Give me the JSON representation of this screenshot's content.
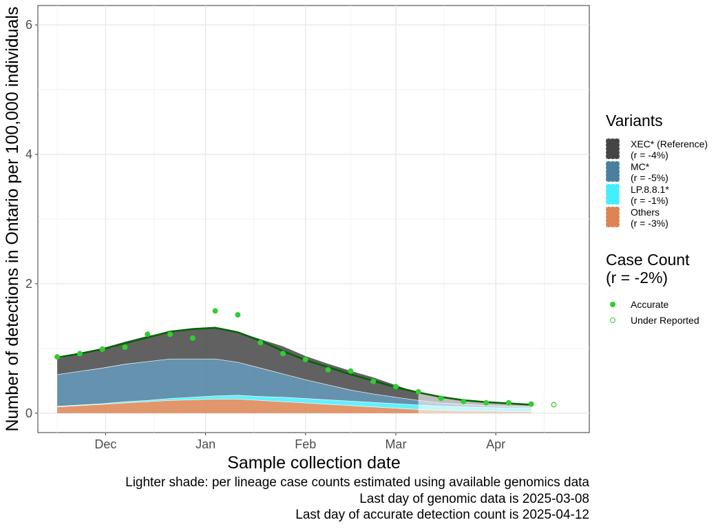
{
  "chart_data": {
    "type": "area",
    "xlabel": "Sample collection date",
    "ylabel": "Number of detections in Ontario per 100,000 individuals",
    "ylim": [
      -0.3,
      6.3
    ],
    "yticks": [
      0,
      2,
      4,
      6
    ],
    "xlim": [
      "2024-11-10",
      "2025-04-30"
    ],
    "xticks": [
      {
        "date": "2024-12-01",
        "label": "Dec"
      },
      {
        "date": "2025-01-01",
        "label": "Jan"
      },
      {
        "date": "2025-02-01",
        "label": "Feb"
      },
      {
        "date": "2025-03-01",
        "label": "Mar"
      },
      {
        "date": "2025-04-01",
        "label": "Apr"
      }
    ],
    "grid": true,
    "genomic_cutoff": "2025-03-08",
    "dates": [
      "2024-11-16",
      "2024-11-23",
      "2024-11-30",
      "2024-12-07",
      "2024-12-14",
      "2024-12-21",
      "2024-12-28",
      "2025-01-04",
      "2025-01-11",
      "2025-01-18",
      "2025-01-25",
      "2025-02-01",
      "2025-02-08",
      "2025-02-15",
      "2025-02-22",
      "2025-03-01",
      "2025-03-08",
      "2025-03-15",
      "2025-03-22",
      "2025-03-29",
      "2025-04-05",
      "2025-04-12"
    ],
    "series": [
      {
        "name": "Others",
        "key": "others",
        "color": "#dd8452",
        "values": [
          0.1,
          0.12,
          0.14,
          0.16,
          0.18,
          0.2,
          0.21,
          0.22,
          0.22,
          0.2,
          0.18,
          0.16,
          0.14,
          0.12,
          0.1,
          0.08,
          0.06,
          0.05,
          0.04,
          0.04,
          0.03,
          0.03
        ]
      },
      {
        "name": "LP.8.8.1*",
        "key": "lp881",
        "color": "#44eeff",
        "values": [
          0.01,
          0.01,
          0.01,
          0.02,
          0.02,
          0.03,
          0.04,
          0.05,
          0.06,
          0.06,
          0.07,
          0.07,
          0.07,
          0.07,
          0.07,
          0.07,
          0.07,
          0.06,
          0.06,
          0.05,
          0.05,
          0.05
        ]
      },
      {
        "name": "MC*",
        "key": "mc",
        "color": "#4a7fa0",
        "values": [
          0.49,
          0.52,
          0.55,
          0.58,
          0.6,
          0.61,
          0.59,
          0.57,
          0.51,
          0.44,
          0.36,
          0.29,
          0.23,
          0.17,
          0.13,
          0.1,
          0.07,
          0.05,
          0.04,
          0.03,
          0.03,
          0.02
        ]
      },
      {
        "name": "XEC* (Reference)",
        "key": "xec",
        "color": "#454545",
        "values": [
          0.25,
          0.27,
          0.31,
          0.35,
          0.4,
          0.42,
          0.46,
          0.48,
          0.47,
          0.45,
          0.43,
          0.37,
          0.33,
          0.3,
          0.26,
          0.19,
          0.12,
          0.09,
          0.07,
          0.06,
          0.04,
          0.03
        ]
      }
    ],
    "case_total_line": {
      "color": "#006400",
      "values": [
        0.86,
        0.92,
        0.99,
        1.08,
        1.17,
        1.26,
        1.3,
        1.32,
        1.25,
        1.12,
        0.96,
        0.82,
        0.71,
        0.6,
        0.5,
        0.4,
        0.32,
        0.25,
        0.2,
        0.17,
        0.15,
        0.13
      ]
    },
    "points_accurate": {
      "name": "Accurate",
      "color": "#33cc33",
      "points": [
        [
          "2024-11-16",
          0.87
        ],
        [
          "2024-11-23",
          0.92
        ],
        [
          "2024-11-30",
          0.99
        ],
        [
          "2024-12-07",
          1.02
        ],
        [
          "2024-12-14",
          1.22
        ],
        [
          "2024-12-21",
          1.22
        ],
        [
          "2024-12-28",
          1.16
        ],
        [
          "2025-01-04",
          1.58
        ],
        [
          "2025-01-11",
          1.52
        ],
        [
          "2025-01-18",
          1.09
        ],
        [
          "2025-01-25",
          0.92
        ],
        [
          "2025-02-01",
          0.83
        ],
        [
          "2025-02-08",
          0.67
        ],
        [
          "2025-02-15",
          0.65
        ],
        [
          "2025-02-22",
          0.49
        ],
        [
          "2025-03-01",
          0.41
        ],
        [
          "2025-03-08",
          0.33
        ],
        [
          "2025-03-15",
          0.23
        ],
        [
          "2025-03-22",
          0.18
        ],
        [
          "2025-03-29",
          0.16
        ],
        [
          "2025-04-05",
          0.16
        ],
        [
          "2025-04-12",
          0.14
        ]
      ]
    },
    "points_underreported": {
      "name": "Under Reported",
      "color": "#33cc33",
      "points": [
        [
          "2025-04-19",
          0.13
        ]
      ]
    }
  },
  "legend": {
    "variants_title": "Variants",
    "variants": [
      {
        "line1": "XEC* (Reference)",
        "line2": "(r = -4%)",
        "color": "#454545"
      },
      {
        "line1": "MC*",
        "line2": "(r = -5%)",
        "color": "#4a7fa0"
      },
      {
        "line1": "LP.8.8.1*",
        "line2": "(r = -1%)",
        "color": "#44eeff"
      },
      {
        "line1": "Others",
        "line2": "(r = -3%)",
        "color": "#dd8452"
      }
    ],
    "case_title_line1": "Case Count",
    "case_title_line2": "(r = -2%)",
    "case_accurate": "Accurate",
    "case_underreported": "Under Reported"
  },
  "captions": {
    "line1": "Lighter shade: per lineage case counts estimated using available genomics data",
    "line2": "Last day of genomic data is 2025-03-08",
    "line3": "Last day of accurate detection count is 2025-04-12"
  }
}
